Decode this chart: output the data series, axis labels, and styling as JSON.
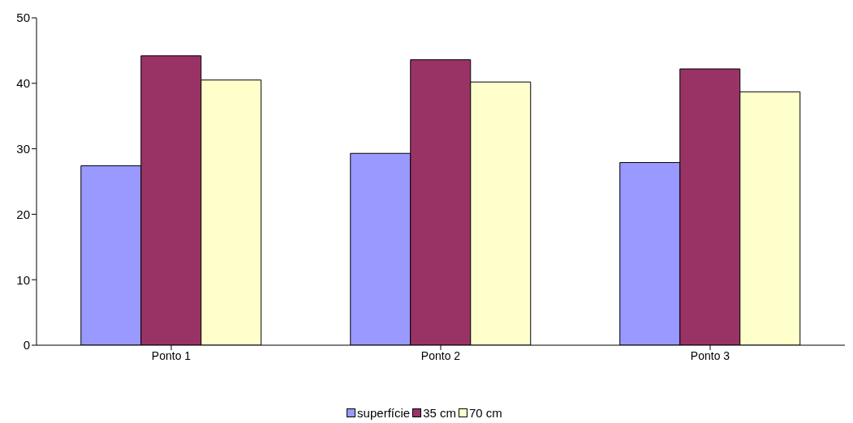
{
  "chart_data": {
    "type": "bar",
    "categories": [
      "Ponto 1",
      "Ponto 2",
      "Ponto 3"
    ],
    "series": [
      {
        "name": "superfície",
        "color": "#9999ff",
        "values": [
          27.4,
          29.3,
          27.9
        ]
      },
      {
        "name": "35 cm",
        "color": "#993366",
        "values": [
          44.2,
          43.6,
          42.2
        ]
      },
      {
        "name": "70 cm",
        "color": "#ffffcc",
        "values": [
          40.5,
          40.2,
          38.7
        ]
      }
    ],
    "ylim": [
      0,
      50
    ],
    "yticks": [
      0,
      10,
      20,
      30,
      40,
      50
    ],
    "grid": false,
    "legend": "bottom"
  }
}
